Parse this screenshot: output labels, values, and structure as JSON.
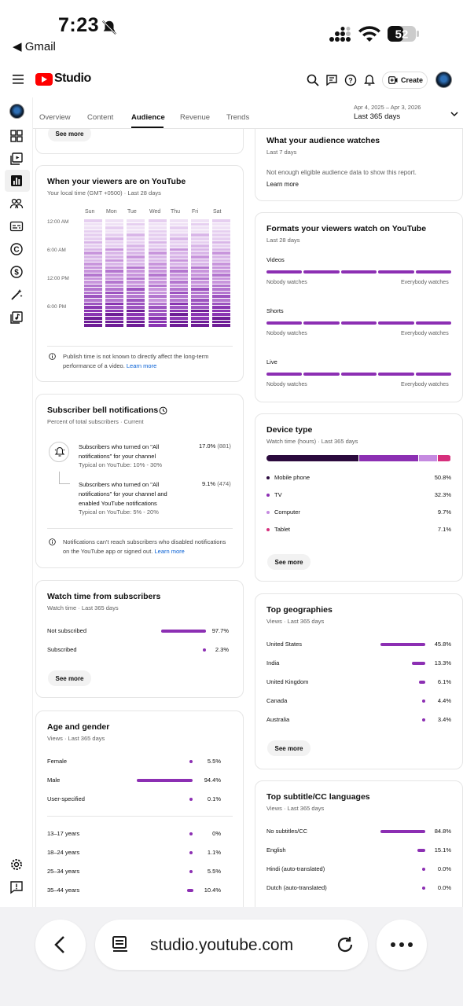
{
  "status_bar": {
    "time": "7:23",
    "back_app": "◀ Gmail",
    "battery": "52"
  },
  "header": {
    "brand": "Studio",
    "create_label": "Create"
  },
  "tabs": {
    "items": [
      "Overview",
      "Content",
      "Audience",
      "Revenue",
      "Trends"
    ],
    "active": "Audience",
    "date_range": "Apr 4, 2025 – Apr 3, 2026",
    "date_label": "Last 365 days"
  },
  "top_card": {
    "see_more": "See more"
  },
  "viewers_on_youtube": {
    "title": "When your viewers are on YouTube",
    "subtitle": "Your local time (GMT +0500) · Last 28 days",
    "days": [
      "Sun",
      "Mon",
      "Tue",
      "Wed",
      "Thu",
      "Fri",
      "Sat"
    ],
    "times": [
      "12:00 AM",
      "6:00 AM",
      "12:00 PM",
      "6:00 PM"
    ],
    "note": "Publish time is not known to directly affect the long-term performance of a video.",
    "learn_more": "Learn more"
  },
  "bell": {
    "title": "Subscriber bell notifications",
    "subtitle": "Percent of total subscribers · Current",
    "row1_text": "Subscribers who turned on \"All notifications\" for your channel",
    "row1_typical": "Typical on YouTube: 10% - 30%",
    "row1_pct": "17.0%",
    "row1_count": "(881)",
    "row2_text": "Subscribers who turned on \"All notifications\" for your channel and enabled YouTube notifications",
    "row2_typical": "Typical on YouTube: 5% - 20%",
    "row2_pct": "9.1%",
    "row2_count": "(474)",
    "note": "Notifications can't reach subscribers who disabled notifications on the YouTube app or signed out.",
    "learn_more": "Learn more"
  },
  "watch_subs": {
    "title": "Watch time from subscribers",
    "subtitle": "Watch time · Last 365 days",
    "rows": [
      {
        "label": "Not subscribed",
        "pct": "97.7%",
        "value": 97.7
      },
      {
        "label": "Subscribed",
        "pct": "2.3%",
        "value": 2.3
      }
    ],
    "see_more": "See more"
  },
  "age_gender": {
    "title": "Age and gender",
    "subtitle": "Views · Last 365 days",
    "gender": [
      {
        "label": "Female",
        "pct": "5.5%",
        "value": 5.5
      },
      {
        "label": "Male",
        "pct": "94.4%",
        "value": 94.4
      },
      {
        "label": "User-specified",
        "pct": "0.1%",
        "value": 0.1
      }
    ],
    "ages": [
      {
        "label": "13–17 years",
        "pct": "0%",
        "value": 0
      },
      {
        "label": "18–24 years",
        "pct": "1.1%",
        "value": 1.1
      },
      {
        "label": "25–34 years",
        "pct": "5.5%",
        "value": 5.5
      },
      {
        "label": "35–44 years",
        "pct": "10.4%",
        "value": 10.4
      }
    ]
  },
  "audience_watches": {
    "title": "What your audience watches",
    "subtitle": "Last 7 days",
    "text": "Not enough eligible audience data to show this report.",
    "learn_more": "Learn more"
  },
  "formats": {
    "title": "Formats your viewers watch on YouTube",
    "subtitle": "Last 28 days",
    "items": [
      "Videos",
      "Shorts",
      "Live"
    ],
    "left_label": "Nobody watches",
    "right_label": "Everybody watches"
  },
  "device": {
    "title": "Device type",
    "subtitle": "Watch time (hours) · Last 365 days",
    "rows": [
      {
        "label": "Mobile phone",
        "pct": "50.8%",
        "value": 50.8,
        "color": "#2b0a3d"
      },
      {
        "label": "TV",
        "pct": "32.3%",
        "value": 32.3,
        "color": "#8c2fb3"
      },
      {
        "label": "Computer",
        "pct": "9.7%",
        "value": 9.7,
        "color": "#c58ae0"
      },
      {
        "label": "Tablet",
        "pct": "7.1%",
        "value": 7.1,
        "color": "#d62f7c"
      }
    ],
    "see_more": "See more"
  },
  "geo": {
    "title": "Top geographies",
    "subtitle": "Views · Last 365 days",
    "rows": [
      {
        "label": "United States",
        "pct": "45.8%",
        "value": 45.8
      },
      {
        "label": "India",
        "pct": "13.3%",
        "value": 13.3
      },
      {
        "label": "United Kingdom",
        "pct": "6.1%",
        "value": 6.1
      },
      {
        "label": "Canada",
        "pct": "4.4%",
        "value": 4.4
      },
      {
        "label": "Australia",
        "pct": "3.4%",
        "value": 3.4
      }
    ],
    "see_more": "See more"
  },
  "subtitles": {
    "title": "Top subtitle/CC languages",
    "subtitle": "Views · Last 365 days",
    "rows": [
      {
        "label": "No subtitles/CC",
        "pct": "84.8%",
        "value": 84.8
      },
      {
        "label": "English",
        "pct": "15.1%",
        "value": 15.1
      },
      {
        "label": "Hindi (auto-translated)",
        "pct": "0.0%",
        "value": 0.0
      },
      {
        "label": "Dutch (auto-translated)",
        "pct": "0.0%",
        "value": 0.0
      }
    ]
  },
  "browser": {
    "url": "studio.youtube.com"
  },
  "colors": {
    "accent": "#8c2fb3",
    "link": "#065fd4",
    "brand": "#ff0000"
  }
}
